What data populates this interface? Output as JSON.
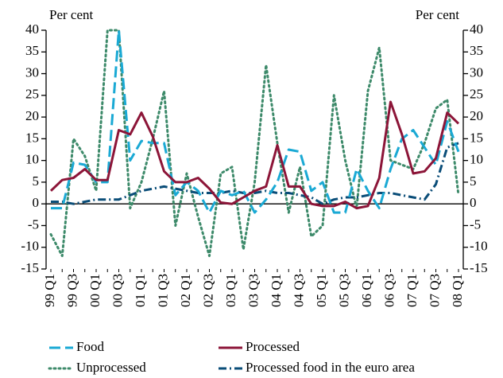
{
  "chart_data": {
    "type": "line",
    "y_label": "Per cent",
    "y2_label": "Per cent",
    "categories": [
      "99 Q1",
      null,
      "99 Q3",
      null,
      "00 Q1",
      null,
      "00 Q3",
      null,
      "01 Q1",
      null,
      "01 Q3",
      null,
      "02 Q1",
      null,
      "02 Q3",
      null,
      "03 Q1",
      null,
      "03 Q3",
      null,
      "04 Q1",
      null,
      "04 Q3",
      null,
      "05 Q1",
      null,
      "05 Q3",
      null,
      "06 Q1",
      null,
      "06 Q3",
      null,
      "07 Q1",
      null,
      "07 Q3",
      null,
      "08 Q1"
    ],
    "ylim": [
      -15,
      40
    ],
    "yticks": [
      -15,
      -10,
      -5,
      0,
      5,
      10,
      15,
      20,
      25,
      30,
      35,
      40
    ],
    "y2lim": [
      -15,
      40
    ],
    "y2ticks": [
      -15,
      -10,
      -5,
      0,
      5,
      10,
      15,
      20,
      25,
      30,
      35,
      40
    ],
    "series": [
      {
        "name": "Food",
        "color": "#1aa9d4",
        "style": "dashed",
        "values": [
          -1,
          -1,
          9.5,
          9,
          5,
          5,
          40,
          10,
          14.5,
          14,
          14,
          2,
          5,
          3,
          -2,
          3,
          2,
          3,
          -2,
          1,
          5,
          12.5,
          12,
          3,
          5,
          -2,
          -2,
          8,
          3,
          -1,
          8,
          15,
          17,
          13,
          9,
          19,
          12
        ]
      },
      {
        "name": "Processed",
        "color": "#8c1538",
        "style": "solid",
        "values": [
          3,
          5.5,
          6,
          8,
          5.5,
          5.5,
          17,
          16,
          21,
          15.5,
          7.5,
          5,
          5,
          6,
          3.5,
          0.3,
          0,
          1.5,
          3,
          4,
          13.5,
          4,
          4,
          0,
          -0.5,
          -0.5,
          0.5,
          -1,
          -0.5,
          6,
          23.5,
          16,
          7,
          7.5,
          10.5,
          21,
          18.5
        ]
      },
      {
        "name": "Unprocessed",
        "color": "#3d8a6a",
        "style": "dotted",
        "values": [
          -7,
          -12,
          15,
          11,
          3,
          40,
          40,
          -1,
          5,
          15,
          26,
          -5,
          7,
          -3,
          -12,
          7,
          8.5,
          -10.5,
          5,
          32,
          14,
          -2,
          8.5,
          -7.5,
          -5,
          25,
          10,
          -1,
          26,
          36,
          10,
          9,
          8,
          14,
          22,
          24,
          2
        ]
      },
      {
        "name": "Processed food in the euro area",
        "color": "#0a4d78",
        "style": "dashdot",
        "values": [
          0.5,
          0.5,
          0,
          0.5,
          1,
          1,
          1,
          2,
          3,
          3.5,
          4,
          3.5,
          3,
          2.5,
          2.5,
          2.5,
          3,
          2.5,
          2.5,
          3,
          2.5,
          2.5,
          2,
          1.5,
          0,
          1,
          1.5,
          1.5,
          2,
          2.5,
          2.5,
          2,
          1.5,
          1,
          4.5,
          13,
          14
        ]
      }
    ]
  }
}
